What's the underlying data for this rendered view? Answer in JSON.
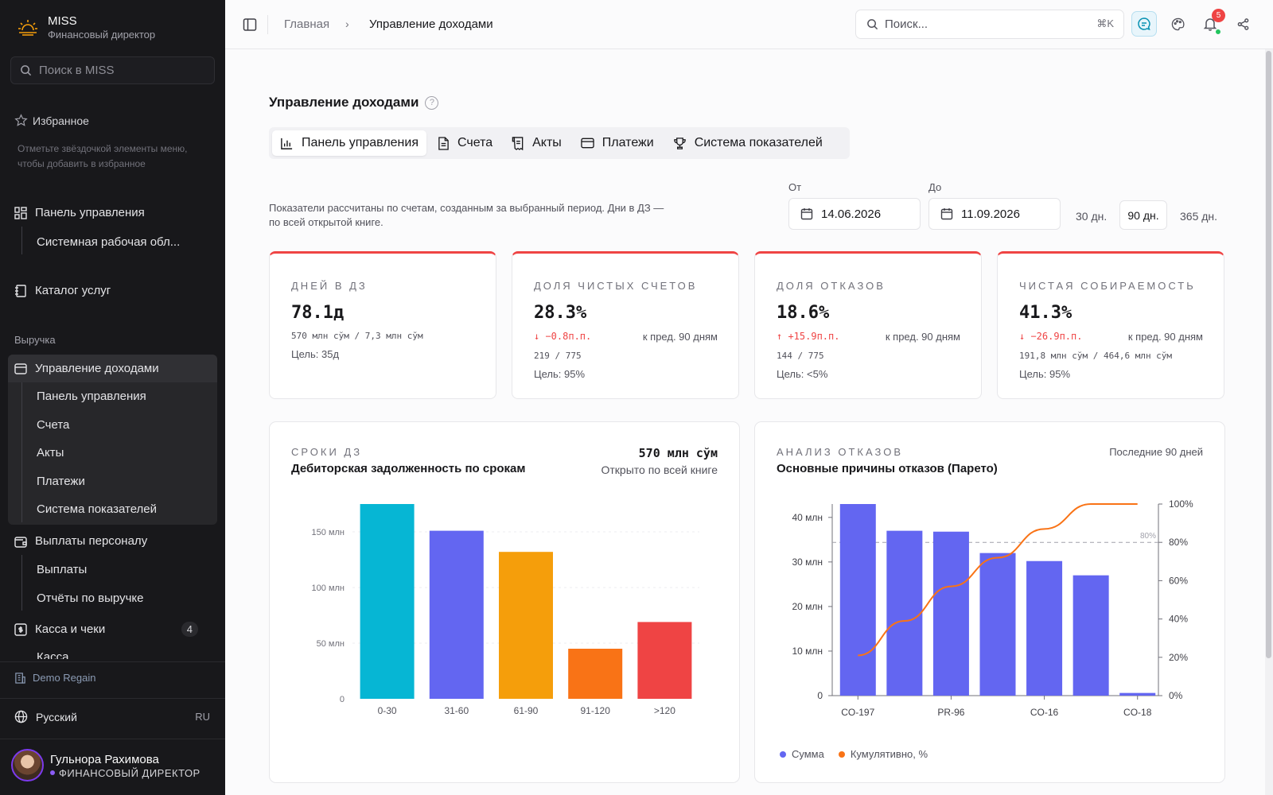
{
  "app": {
    "name": "MISS",
    "subtitle": "Финансовый директор"
  },
  "sidebar": {
    "search_placeholder": "Поиск в MISS",
    "favorites_label": "Избранное",
    "favorites_hint": "Отметьте звёздочкой элементы меню, чтобы добавить в избранное",
    "items": [
      {
        "label": "Панель управления",
        "icon": "dashboard-icon"
      },
      {
        "label": "Системная рабочая обл..."
      },
      {
        "label": "Каталог услуг",
        "icon": "catalog-icon"
      }
    ],
    "group_label": "Выручка",
    "revenue": {
      "label": "Управление доходами",
      "icon": "card-icon",
      "children": [
        "Панель управления",
        "Счета",
        "Акты",
        "Платежи",
        "Система показателей"
      ]
    },
    "payouts": {
      "label": "Выплаты персоналу",
      "icon": "wallet-icon",
      "children": [
        "Выплаты",
        "Отчёты по выручке"
      ]
    },
    "cash": {
      "label": "Касса и чеки",
      "icon": "cash-icon",
      "badge": "4",
      "child": "Касса"
    },
    "org": "Demo Regain",
    "language": {
      "label": "Русский",
      "code": "RU"
    },
    "user": {
      "name": "Гульнора Рахимова",
      "role": "ФИНАНСОВЫЙ ДИРЕКТОР"
    }
  },
  "topbar": {
    "breadcrumb": [
      "Главная",
      "Управление доходами"
    ],
    "search_placeholder": "Поиск...",
    "shortcut": "⌘K",
    "notifications": "5"
  },
  "page": {
    "title": "Управление доходами",
    "tabs": [
      {
        "label": "Панель управления",
        "icon": "bar-chart-icon",
        "active": true
      },
      {
        "label": "Счета",
        "icon": "document-icon"
      },
      {
        "label": "Акты",
        "icon": "receipt-icon"
      },
      {
        "label": "Платежи",
        "icon": "card-icon"
      },
      {
        "label": "Система показателей",
        "icon": "trophy-icon"
      }
    ],
    "note": "Показатели рассчитаны по счетам, созданным за выбранный период. Дни в ДЗ — по всей открытой книге.",
    "date_from_label": "От",
    "date_from": "14.06.2026",
    "date_to_label": "До",
    "date_to": "11.09.2026",
    "ranges": [
      "30 дн.",
      "90 дн.",
      "365 дн."
    ],
    "selected_range": "90 дн."
  },
  "kpis": [
    {
      "label": "ДНЕЙ В ДЗ",
      "value": "78.1д",
      "ratio": "570 млн сўм / 7,3 млн сўм",
      "goal": "Цель: 35д"
    },
    {
      "label": "ДОЛЯ ЧИСТЫХ СЧЕТОВ",
      "value": "28.3%",
      "delta": "↓ −0.8п.п.",
      "compare": "к пред. 90 дням",
      "ratio": "219 / 775",
      "goal": "Цель: 95%"
    },
    {
      "label": "ДОЛЯ ОТКАЗОВ",
      "value": "18.6%",
      "delta": "↑ +15.9п.п.",
      "compare": "к пред. 90 дням",
      "ratio": "144 / 775",
      "goal": "Цель: <5%"
    },
    {
      "label": "ЧИСТАЯ СОБИРАЕМОСТЬ",
      "value": "41.3%",
      "delta": "↓ −26.9п.п.",
      "compare": "к пред. 90 дням",
      "ratio": "191,8 млн сўм / 464,6 млн сўм",
      "goal": "Цель: 95%"
    }
  ],
  "colors": {
    "accent": "#6366f1",
    "danger": "#ef4444",
    "line": "#f97316"
  },
  "chart_data": [
    {
      "type": "bar",
      "label": "СРОКИ ДЗ",
      "title": "Дебиторская задолженность по срокам",
      "total": "570 млн сўм",
      "total_note": "Открыто по всей книге",
      "categories": [
        "0-30",
        "31-60",
        "61-90",
        "91-120",
        ">120"
      ],
      "values": [
        175,
        151,
        132,
        45,
        69
      ],
      "colors": [
        "#06b6d4",
        "#6366f1",
        "#f59e0b",
        "#f97316",
        "#ef4444"
      ],
      "yticks": [
        "0",
        "50 млн",
        "100 млн",
        "150 млн"
      ],
      "ylim": [
        0,
        175
      ],
      "grid": true
    },
    {
      "type": "bar",
      "label": "АНАЛИЗ ОТКАЗОВ",
      "title": "Основные причины отказов (Парето)",
      "range": "Последние 90 дней",
      "categories": [
        "CO-197",
        "",
        "PR-96",
        "",
        "CO-16",
        "",
        "CO-18"
      ],
      "series": [
        {
          "name": "Сумма",
          "values": [
            43,
            37,
            36.8,
            32,
            30.2,
            27,
            0.6
          ]
        },
        {
          "name": "Кумулятивно, %",
          "values": [
            21,
            39,
            57,
            72,
            87,
            100,
            100
          ]
        }
      ],
      "yticks": [
        "0",
        "10 млн",
        "20 млн",
        "30 млн",
        "40 млн"
      ],
      "y2ticks": [
        "0%",
        "20%",
        "40%",
        "60%",
        "80%",
        "100%"
      ],
      "threshold_label": "80%",
      "ylim": [
        0,
        43
      ],
      "y2lim": [
        0,
        100
      ]
    }
  ]
}
